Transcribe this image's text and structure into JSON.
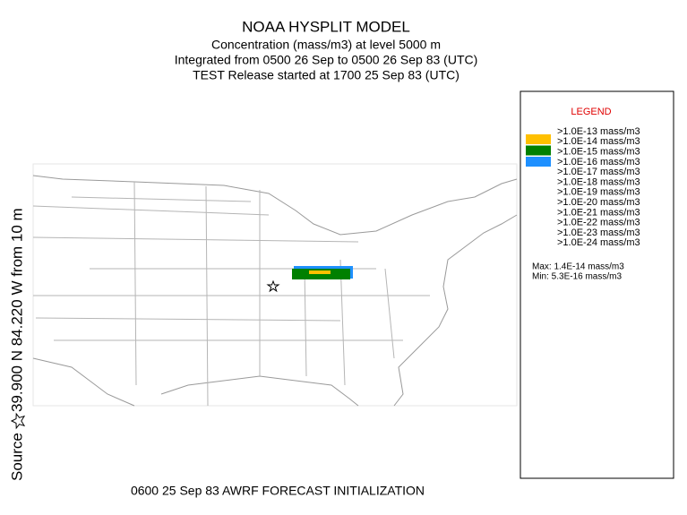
{
  "header": {
    "title": "NOAA HYSPLIT MODEL",
    "lines": [
      "Concentration  (mass/m3) at level  5000 m",
      "Integrated from 0500 26 Sep to 0500 26 Sep 83 (UTC)",
      "TEST Release started at 1700 25 Sep 83 (UTC)"
    ]
  },
  "side_label": {
    "source": "Source",
    "location": "39.900  N  84.220  W    from   10 m"
  },
  "legend": {
    "title": "LEGEND",
    "entries": [
      ">1.0E-13 mass/m3",
      ">1.0E-14 mass/m3",
      ">1.0E-15 mass/m3",
      ">1.0E-16 mass/m3",
      ">1.0E-17 mass/m3",
      ">1.0E-18 mass/m3",
      ">1.0E-19 mass/m3",
      ">1.0E-20 mass/m3",
      ">1.0E-21 mass/m3",
      ">1.0E-22 mass/m3",
      ">1.0E-23 mass/m3",
      ">1.0E-24 mass/m3"
    ],
    "swatch_colors": [
      "#ffc000",
      "#008000",
      "#1e90ff"
    ],
    "max": "Max: 1.4E-14 mass/m3",
    "min": "Min: 5.3E-16 mass/m3"
  },
  "footer": "0600 25 Sep 83 AWRF FORECAST INITIALIZATION"
}
